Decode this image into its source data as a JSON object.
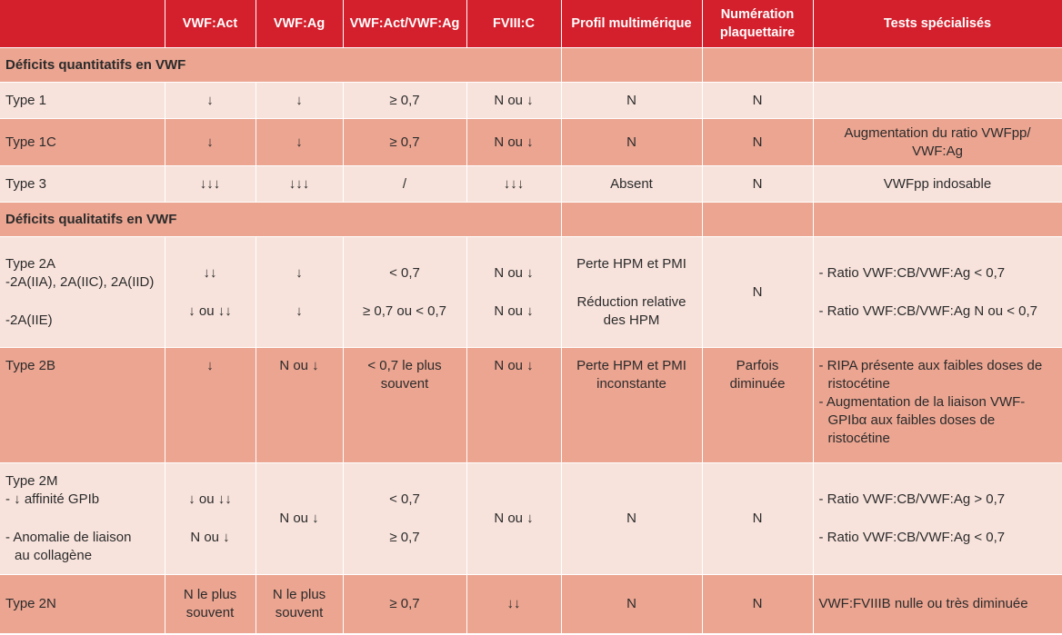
{
  "headers": [
    "",
    "VWF:Act",
    "VWF:Ag",
    "VWF:Act/VWF:Ag",
    "FVIII:C",
    "Profil multimérique",
    "Numération plaquettaire",
    "Tests spécialisés"
  ],
  "sections": {
    "quantitative": "Déficits quantitatifs en VWF",
    "qualitative": "Déficits qualitatifs en VWF"
  },
  "type1": {
    "name": "Type 1",
    "act": "↓",
    "ag": "↓",
    "ratio": "≥ 0,7",
    "fviii": "N ou ↓",
    "profil": "N",
    "plaq": "N",
    "tests": ""
  },
  "type1c": {
    "name": "Type 1C",
    "act": "↓",
    "ag": "↓",
    "ratio": "≥ 0,7",
    "fviii": "N ou ↓",
    "profil": "N",
    "plaq": "N",
    "tests": "Augmentation du ratio VWFpp/ VWF:Ag"
  },
  "type3": {
    "name": "Type 3",
    "act": "↓↓↓",
    "ag": "↓↓↓",
    "ratio": "/",
    "fviii": "↓↓↓",
    "profil": "Absent",
    "plaq": "N",
    "tests": "VWFpp indosable"
  },
  "type2a": {
    "name": "Type 2A",
    "sub1": "-2A(IIA), 2A(IIC), 2A(IID)",
    "sub2": "-2A(IIE)",
    "act1": "↓↓",
    "act2": "↓ ou ↓↓",
    "ag1": "↓",
    "ag2": "↓",
    "ratio1": "< 0,7",
    "ratio2": "≥ 0,7 ou < 0,7",
    "fviii1": "N ou ↓",
    "fviii2": "N ou ↓",
    "profil1": "Perte HPM et PMI",
    "profil2": "Réduction relative des HPM",
    "plaq": "N",
    "tests1": "- Ratio VWF:CB/VWF:Ag < 0,7",
    "tests2": "- Ratio VWF:CB/VWF:Ag N ou < 0,7"
  },
  "type2b": {
    "name": "Type 2B",
    "act": "↓",
    "ag": "N ou ↓",
    "ratio": "< 0,7 le plus souvent",
    "fviii": "N ou ↓",
    "profil": "Perte HPM et PMI inconstante",
    "plaq": "Parfois diminuée",
    "tests1": "- RIPA présente aux faibles doses de ristocétine",
    "tests2": "- Augmentation de la liaison VWF-GPIbα  aux faibles doses de ristocétine"
  },
  "type2m": {
    "name": "Type 2M",
    "sub1": "- ↓ affinité GPIb",
    "sub2": "- Anomalie de liaison",
    "sub2b": "au collagène",
    "act1": "↓ ou ↓↓",
    "act2": "N ou ↓",
    "ag": "N ou ↓",
    "ratio1": "< 0,7",
    "ratio2": "≥ 0,7",
    "fviii": "N ou ↓",
    "profil": "N",
    "plaq": "N",
    "tests1": "- Ratio VWF:CB/VWF:Ag >  0,7",
    "tests2": "- Ratio VWF:CB/VWF:Ag  < 0,7"
  },
  "type2n": {
    "name": "Type 2N",
    "act": "N le plus souvent",
    "ag": "N le plus souvent",
    "ratio": "≥ 0,7",
    "fviii": "↓↓",
    "profil": "N",
    "plaq": "N",
    "tests": "VWF:FVIIIB nulle ou très diminuée"
  }
}
